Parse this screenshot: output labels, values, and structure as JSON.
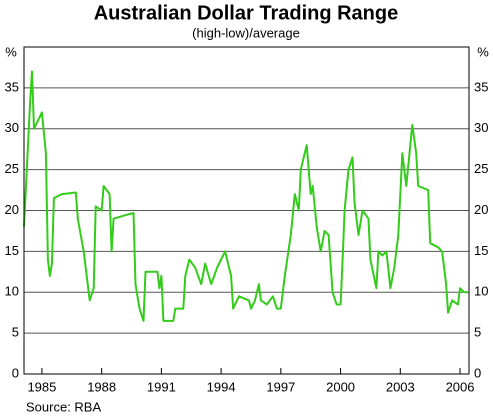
{
  "chart_data": {
    "type": "line",
    "title": "Australian Dollar Trading Range",
    "subtitle": "(high-low)/average",
    "y_unit": "%",
    "source": "Source: RBA",
    "x": [
      1984.1,
      1984.4,
      1984.5,
      1984.6,
      1985.0,
      1985.2,
      1985.3,
      1985.4,
      1985.5,
      1985.6,
      1986.0,
      1986.7,
      1986.8,
      1987.1,
      1987.4,
      1987.6,
      1987.7,
      1988.0,
      1988.1,
      1988.4,
      1988.5,
      1988.6,
      1989.3,
      1989.6,
      1989.7,
      1989.9,
      1990.1,
      1990.2,
      1990.8,
      1990.9,
      1991.0,
      1991.1,
      1991.6,
      1991.7,
      1992.1,
      1992.2,
      1992.4,
      1992.7,
      1993.0,
      1993.2,
      1993.5,
      1993.8,
      1994.1,
      1994.2,
      1994.5,
      1994.6,
      1994.9,
      1995.4,
      1995.5,
      1995.7,
      1995.9,
      1996.0,
      1996.3,
      1996.6,
      1996.8,
      1997.0,
      1997.2,
      1997.5,
      1997.7,
      1997.9,
      1998.0,
      1998.3,
      1998.5,
      1998.6,
      1998.8,
      1999.0,
      1999.2,
      1999.4,
      1999.6,
      1999.8,
      2000.0,
      2000.1,
      2000.2,
      2000.4,
      2000.6,
      2000.7,
      2000.9,
      2001.1,
      2001.4,
      2001.5,
      2001.8,
      2001.9,
      2002.1,
      2002.3,
      2002.5,
      2002.7,
      2002.9,
      2003.1,
      2003.3,
      2003.6,
      2003.8,
      2003.9,
      2004.4,
      2004.5,
      2004.9,
      2005.1,
      2005.3,
      2005.4,
      2005.6,
      2005.9,
      2006.0,
      2006.2,
      2006.4
    ],
    "series": [
      {
        "name": "Trading range",
        "color": "#33cc1a",
        "values": [
          18,
          33,
          37,
          30,
          32,
          27,
          14,
          12,
          13.5,
          21.5,
          22,
          22.2,
          19,
          15,
          9,
          10.5,
          20.5,
          20,
          23,
          22,
          15,
          19,
          19.5,
          19.7,
          11,
          8,
          6.5,
          12.5,
          12.5,
          10.5,
          12,
          6.5,
          6.5,
          8,
          8,
          12,
          14,
          13,
          11,
          13.5,
          11,
          13,
          14.5,
          15,
          12,
          8,
          9.5,
          9,
          8,
          9,
          11,
          9,
          8.5,
          9.5,
          8,
          8,
          12,
          17,
          22,
          20,
          25,
          28,
          22,
          23,
          18,
          15,
          17.5,
          17,
          10,
          8.5,
          8.5,
          14,
          20,
          25,
          26.5,
          21,
          17,
          20,
          19,
          14,
          10.5,
          15,
          14.5,
          15,
          10.5,
          13,
          17,
          27,
          23,
          30.5,
          27,
          23,
          22.5,
          16,
          15.5,
          15,
          11,
          7.5,
          9,
          8.5,
          10.5,
          10,
          10
        ]
      }
    ],
    "xlim": [
      1984.1,
      2006.45
    ],
    "xticks": [
      1985,
      1988,
      1991,
      1994,
      1997,
      2000,
      2003,
      2006
    ],
    "ylim": [
      0,
      40
    ],
    "yticks": [
      0,
      5,
      10,
      15,
      20,
      25,
      30,
      35
    ],
    "grid": true
  }
}
